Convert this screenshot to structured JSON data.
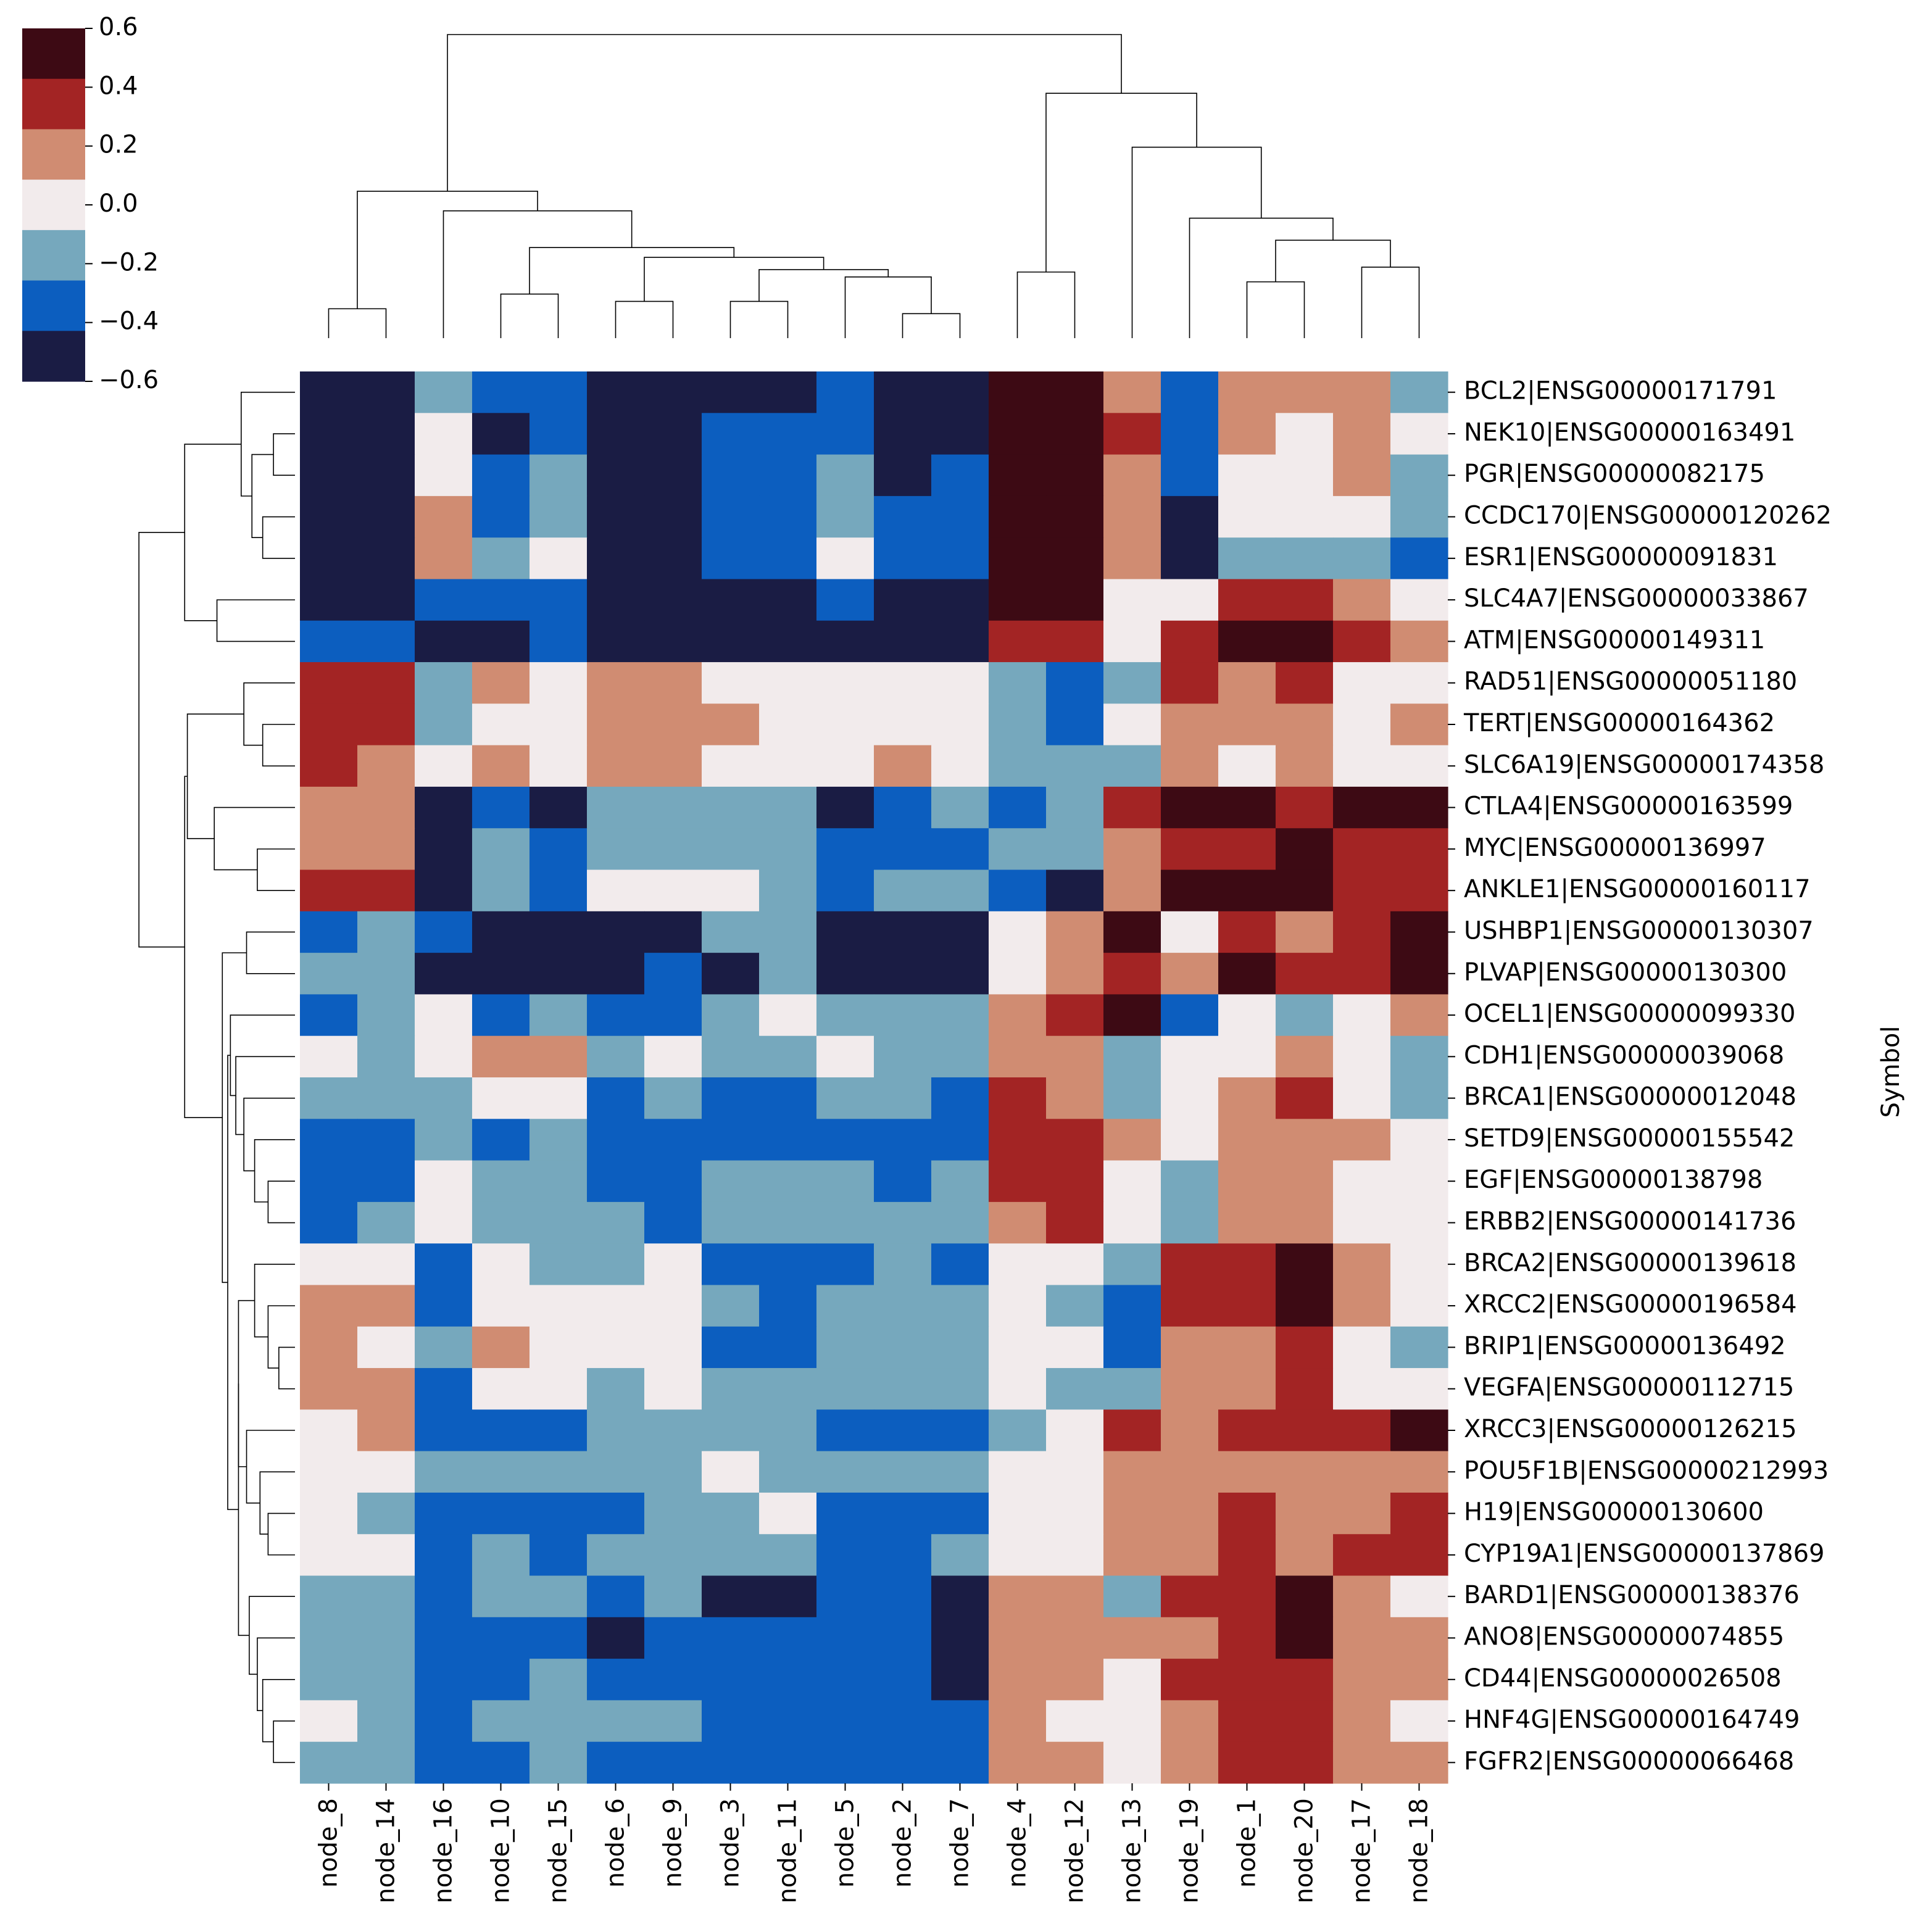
{
  "chart_data": {
    "type": "heatmap",
    "title": "",
    "ylabel": "Symbol",
    "xlabel": "",
    "columns": [
      "node_8",
      "node_14",
      "node_16",
      "node_10",
      "node_15",
      "node_6",
      "node_9",
      "node_3",
      "node_11",
      "node_5",
      "node_2",
      "node_7",
      "node_4",
      "node_12",
      "node_13",
      "node_19",
      "node_1",
      "node_20",
      "node_17",
      "node_18"
    ],
    "rows": [
      "BCL2|ENSG00000171791",
      "NEK10|ENSG00000163491",
      "PGR|ENSG00000082175",
      "CCDC170|ENSG00000120262",
      "ESR1|ENSG00000091831",
      "SLC4A7|ENSG00000033867",
      "ATM|ENSG00000149311",
      "RAD51|ENSG00000051180",
      "TERT|ENSG00000164362",
      "SLC6A19|ENSG00000174358",
      "CTLA4|ENSG00000163599",
      "MYC|ENSG00000136997",
      "ANKLE1|ENSG00000160117",
      "USHBP1|ENSG00000130307",
      "PLVAP|ENSG00000130300",
      "OCEL1|ENSG00000099330",
      "CDH1|ENSG00000039068",
      "BRCA1|ENSG00000012048",
      "SETD9|ENSG00000155542",
      "EGF|ENSG00000138798",
      "ERBB2|ENSG00000141736",
      "BRCA2|ENSG00000139618",
      "XRCC2|ENSG00000196584",
      "BRIP1|ENSG00000136492",
      "VEGFA|ENSG00000112715",
      "XRCC3|ENSG00000126215",
      "POU5F1B|ENSG00000212993",
      "H19|ENSG00000130600",
      "CYP19A1|ENSG00000137869",
      "BARD1|ENSG00000138376",
      "ANO8|ENSG00000074855",
      "CD44|ENSG00000026508",
      "HNF4G|ENSG00000164749",
      "FGFR2|ENSG00000066468"
    ],
    "values": [
      [
        -0.5,
        -0.5,
        -0.1,
        -0.3,
        -0.3,
        -0.5,
        -0.5,
        -0.5,
        -0.5,
        -0.3,
        -0.5,
        -0.5,
        0.5,
        0.5,
        0.1,
        -0.3,
        0.1,
        0.1,
        0.1,
        -0.1
      ],
      [
        -0.5,
        -0.5,
        0.0,
        -0.5,
        -0.3,
        -0.5,
        -0.5,
        -0.3,
        -0.3,
        -0.3,
        -0.5,
        -0.5,
        0.5,
        0.5,
        0.3,
        -0.3,
        0.1,
        0.0,
        0.1,
        0.0
      ],
      [
        -0.5,
        -0.5,
        0.0,
        -0.3,
        -0.1,
        -0.5,
        -0.5,
        -0.3,
        -0.3,
        -0.1,
        -0.5,
        -0.3,
        0.5,
        0.5,
        0.1,
        -0.3,
        0.0,
        0.0,
        0.1,
        -0.1
      ],
      [
        -0.5,
        -0.5,
        0.1,
        -0.3,
        -0.1,
        -0.5,
        -0.5,
        -0.3,
        -0.3,
        -0.1,
        -0.3,
        -0.3,
        0.5,
        0.5,
        0.1,
        -0.5,
        0.0,
        0.0,
        0.0,
        -0.1
      ],
      [
        -0.5,
        -0.5,
        0.1,
        -0.1,
        0.0,
        -0.5,
        -0.5,
        -0.3,
        -0.3,
        0.0,
        -0.3,
        -0.3,
        0.5,
        0.5,
        0.1,
        -0.5,
        -0.1,
        -0.1,
        -0.1,
        -0.3
      ],
      [
        -0.5,
        -0.5,
        -0.3,
        -0.3,
        -0.3,
        -0.5,
        -0.5,
        -0.5,
        -0.5,
        -0.3,
        -0.5,
        -0.5,
        0.5,
        0.5,
        0.0,
        0.0,
        0.3,
        0.3,
        0.1,
        0.0
      ],
      [
        -0.3,
        -0.3,
        -0.5,
        -0.5,
        -0.3,
        -0.5,
        -0.5,
        -0.5,
        -0.5,
        -0.5,
        -0.5,
        -0.5,
        0.3,
        0.3,
        0.0,
        0.3,
        0.5,
        0.5,
        0.3,
        0.1
      ],
      [
        0.3,
        0.3,
        -0.1,
        0.1,
        0.0,
        0.1,
        0.1,
        0.0,
        0.0,
        0.0,
        0.0,
        0.0,
        -0.1,
        -0.3,
        -0.1,
        0.3,
        0.1,
        0.3,
        0.0,
        0.0
      ],
      [
        0.3,
        0.3,
        -0.1,
        0.0,
        0.0,
        0.1,
        0.1,
        0.1,
        0.0,
        0.0,
        0.0,
        0.0,
        -0.1,
        -0.3,
        0.0,
        0.1,
        0.1,
        0.1,
        0.0,
        0.1
      ],
      [
        0.3,
        0.1,
        0.0,
        0.1,
        0.0,
        0.1,
        0.1,
        0.0,
        0.0,
        0.0,
        0.1,
        0.0,
        -0.1,
        -0.1,
        -0.1,
        0.1,
        0.0,
        0.1,
        0.0,
        0.0
      ],
      [
        0.1,
        0.1,
        -0.5,
        -0.3,
        -0.5,
        -0.1,
        -0.1,
        -0.1,
        -0.1,
        -0.5,
        -0.3,
        -0.1,
        -0.3,
        -0.1,
        0.3,
        0.5,
        0.5,
        0.3,
        0.5,
        0.5
      ],
      [
        0.1,
        0.1,
        -0.5,
        -0.1,
        -0.3,
        -0.1,
        -0.1,
        -0.1,
        -0.1,
        -0.3,
        -0.3,
        -0.3,
        -0.1,
        -0.1,
        0.1,
        0.3,
        0.3,
        0.5,
        0.3,
        0.3
      ],
      [
        0.3,
        0.3,
        -0.5,
        -0.1,
        -0.3,
        0.0,
        0.0,
        0.0,
        -0.1,
        -0.3,
        -0.1,
        -0.1,
        -0.3,
        -0.5,
        0.1,
        0.5,
        0.5,
        0.5,
        0.3,
        0.3
      ],
      [
        -0.3,
        -0.1,
        -0.3,
        -0.5,
        -0.5,
        -0.5,
        -0.5,
        -0.1,
        -0.1,
        -0.5,
        -0.5,
        -0.5,
        0.0,
        0.1,
        0.5,
        0.0,
        0.3,
        0.1,
        0.3,
        0.5
      ],
      [
        -0.1,
        -0.1,
        -0.5,
        -0.5,
        -0.5,
        -0.5,
        -0.3,
        -0.5,
        -0.1,
        -0.5,
        -0.5,
        -0.5,
        0.0,
        0.1,
        0.3,
        0.1,
        0.5,
        0.3,
        0.3,
        0.5
      ],
      [
        -0.3,
        -0.1,
        0.0,
        -0.3,
        -0.1,
        -0.3,
        -0.3,
        -0.1,
        0.0,
        -0.1,
        -0.1,
        -0.1,
        0.1,
        0.3,
        0.5,
        -0.3,
        0.0,
        -0.1,
        0.0,
        0.1
      ],
      [
        0.0,
        -0.1,
        0.0,
        0.1,
        0.1,
        -0.1,
        0.0,
        -0.1,
        -0.1,
        0.0,
        -0.1,
        -0.1,
        0.1,
        0.1,
        -0.1,
        0.0,
        0.0,
        0.1,
        0.0,
        -0.1
      ],
      [
        -0.1,
        -0.1,
        -0.1,
        0.0,
        0.0,
        -0.3,
        -0.1,
        -0.3,
        -0.3,
        -0.1,
        -0.1,
        -0.3,
        0.3,
        0.1,
        -0.1,
        0.0,
        0.1,
        0.3,
        0.0,
        -0.1
      ],
      [
        -0.3,
        -0.3,
        -0.1,
        -0.3,
        -0.1,
        -0.3,
        -0.3,
        -0.3,
        -0.3,
        -0.3,
        -0.3,
        -0.3,
        0.3,
        0.3,
        0.1,
        0.0,
        0.1,
        0.1,
        0.1,
        0.0
      ],
      [
        -0.3,
        -0.3,
        0.0,
        -0.1,
        -0.1,
        -0.3,
        -0.3,
        -0.1,
        -0.1,
        -0.1,
        -0.3,
        -0.1,
        0.3,
        0.3,
        0.0,
        -0.1,
        0.1,
        0.1,
        0.0,
        0.0
      ],
      [
        -0.3,
        -0.1,
        0.0,
        -0.1,
        -0.1,
        -0.1,
        -0.3,
        -0.1,
        -0.1,
        -0.1,
        -0.1,
        -0.1,
        0.1,
        0.3,
        0.0,
        -0.1,
        0.1,
        0.1,
        0.0,
        0.0
      ],
      [
        0.0,
        0.0,
        -0.3,
        0.0,
        -0.1,
        -0.1,
        0.0,
        -0.3,
        -0.3,
        -0.3,
        -0.1,
        -0.3,
        0.0,
        0.0,
        -0.1,
        0.3,
        0.3,
        0.5,
        0.1,
        0.0
      ],
      [
        0.1,
        0.1,
        -0.3,
        0.0,
        0.0,
        0.0,
        0.0,
        -0.1,
        -0.3,
        -0.1,
        -0.1,
        -0.1,
        0.0,
        -0.1,
        -0.3,
        0.3,
        0.3,
        0.5,
        0.1,
        0.0
      ],
      [
        0.1,
        0.0,
        -0.1,
        0.1,
        0.0,
        0.0,
        0.0,
        -0.3,
        -0.3,
        -0.1,
        -0.1,
        -0.1,
        0.0,
        0.0,
        -0.3,
        0.1,
        0.1,
        0.3,
        0.0,
        -0.1
      ],
      [
        0.1,
        0.1,
        -0.3,
        0.0,
        0.0,
        -0.1,
        0.0,
        -0.1,
        -0.1,
        -0.1,
        -0.1,
        -0.1,
        0.0,
        -0.1,
        -0.1,
        0.1,
        0.1,
        0.3,
        0.0,
        0.0
      ],
      [
        0.0,
        0.1,
        -0.3,
        -0.3,
        -0.3,
        -0.1,
        -0.1,
        -0.1,
        -0.1,
        -0.3,
        -0.3,
        -0.3,
        -0.1,
        0.0,
        0.3,
        0.1,
        0.3,
        0.3,
        0.3,
        0.5
      ],
      [
        0.0,
        0.0,
        -0.1,
        -0.1,
        -0.1,
        -0.1,
        -0.1,
        0.0,
        -0.1,
        -0.1,
        -0.1,
        -0.1,
        0.0,
        0.0,
        0.1,
        0.1,
        0.1,
        0.1,
        0.1,
        0.1
      ],
      [
        0.0,
        -0.1,
        -0.3,
        -0.3,
        -0.3,
        -0.3,
        -0.1,
        -0.1,
        0.0,
        -0.3,
        -0.3,
        -0.3,
        0.0,
        0.0,
        0.1,
        0.1,
        0.3,
        0.1,
        0.1,
        0.3
      ],
      [
        0.0,
        0.0,
        -0.3,
        -0.1,
        -0.3,
        -0.1,
        -0.1,
        -0.1,
        -0.1,
        -0.3,
        -0.3,
        -0.1,
        0.0,
        0.0,
        0.1,
        0.1,
        0.3,
        0.1,
        0.3,
        0.3
      ],
      [
        -0.1,
        -0.1,
        -0.3,
        -0.1,
        -0.1,
        -0.3,
        -0.1,
        -0.5,
        -0.5,
        -0.3,
        -0.3,
        -0.5,
        0.1,
        0.1,
        -0.1,
        0.3,
        0.3,
        0.5,
        0.1,
        0.0
      ],
      [
        -0.1,
        -0.1,
        -0.3,
        -0.3,
        -0.3,
        -0.5,
        -0.3,
        -0.3,
        -0.3,
        -0.3,
        -0.3,
        -0.5,
        0.1,
        0.1,
        0.1,
        0.1,
        0.3,
        0.5,
        0.1,
        0.1
      ],
      [
        -0.1,
        -0.1,
        -0.3,
        -0.3,
        -0.1,
        -0.3,
        -0.3,
        -0.3,
        -0.3,
        -0.3,
        -0.3,
        -0.5,
        0.1,
        0.1,
        0.0,
        0.3,
        0.3,
        0.3,
        0.1,
        0.1
      ],
      [
        0.0,
        -0.1,
        -0.3,
        -0.1,
        -0.1,
        -0.1,
        -0.1,
        -0.3,
        -0.3,
        -0.3,
        -0.3,
        -0.3,
        0.1,
        0.0,
        0.0,
        0.1,
        0.3,
        0.3,
        0.1,
        0.0
      ],
      [
        -0.1,
        -0.1,
        -0.3,
        -0.3,
        -0.1,
        -0.3,
        -0.3,
        -0.3,
        -0.3,
        -0.3,
        -0.3,
        -0.3,
        0.1,
        0.1,
        0.0,
        0.1,
        0.3,
        0.3,
        0.1,
        0.1
      ]
    ],
    "colorbar": {
      "vmin": -0.6,
      "vmax": 0.6,
      "tick_labels": [
        "0.6",
        "0.4",
        "0.2",
        "0.0",
        "−0.2",
        "−0.4",
        "−0.6"
      ],
      "tick_values": [
        0.6,
        0.4,
        0.2,
        0.0,
        -0.2,
        -0.4,
        -0.6
      ],
      "colors_high_to_low": [
        "#3d0a14",
        "#a32424",
        "#d08c72",
        "#f2ebec",
        "#76a8bd",
        "#0c5ebf",
        "#1a1c44"
      ]
    },
    "column_dendrogram": {
      "leaf_order": [
        "node_8",
        "node_14",
        "node_16",
        "node_10",
        "node_15",
        "node_6",
        "node_9",
        "node_3",
        "node_11",
        "node_5",
        "node_2",
        "node_7",
        "node_4",
        "node_12",
        "node_13",
        "node_19",
        "node_1",
        "node_20",
        "node_17",
        "node_18"
      ],
      "merges": [
        {
          "a": 0,
          "b": 1,
          "height": 0.12
        },
        {
          "a": 3,
          "b": 4,
          "height": 0.18
        },
        {
          "a": 5,
          "b": 6,
          "height": 0.15
        },
        {
          "a": 7,
          "b": 8,
          "height": 0.15
        },
        {
          "a": 10,
          "b": 11,
          "height": 0.1
        },
        {
          "a": "c7_8",
          "b": "c9_10_11",
          "height": 0.28
        },
        {
          "a": 9,
          "b": "c10_11",
          "height": 0.25
        },
        {
          "a": "c5_6",
          "b": "c7_11",
          "height": 0.33
        },
        {
          "a": "c3_4",
          "b": "c5_11",
          "height": 0.37
        },
        {
          "a": 2,
          "b": "c3_11",
          "height": 0.52
        },
        {
          "a": "c0_1",
          "b": "c2_11",
          "height": 0.6
        },
        {
          "a": 12,
          "b": 13,
          "height": 0.27
        },
        {
          "a": 16,
          "b": 17,
          "height": 0.23
        },
        {
          "a": 18,
          "b": 19,
          "height": 0.29
        },
        {
          "a": "c16_17",
          "b": "c18_19",
          "height": 0.4
        },
        {
          "a": 15,
          "b": "c16_19",
          "height": 0.49
        },
        {
          "a": 14,
          "b": "c15_19",
          "height": 0.78
        },
        {
          "a": "c12_13",
          "b": "c14_19",
          "height": 1.0
        },
        {
          "a": "c0_11",
          "b": "c12_19",
          "height": 1.24
        }
      ]
    }
  }
}
